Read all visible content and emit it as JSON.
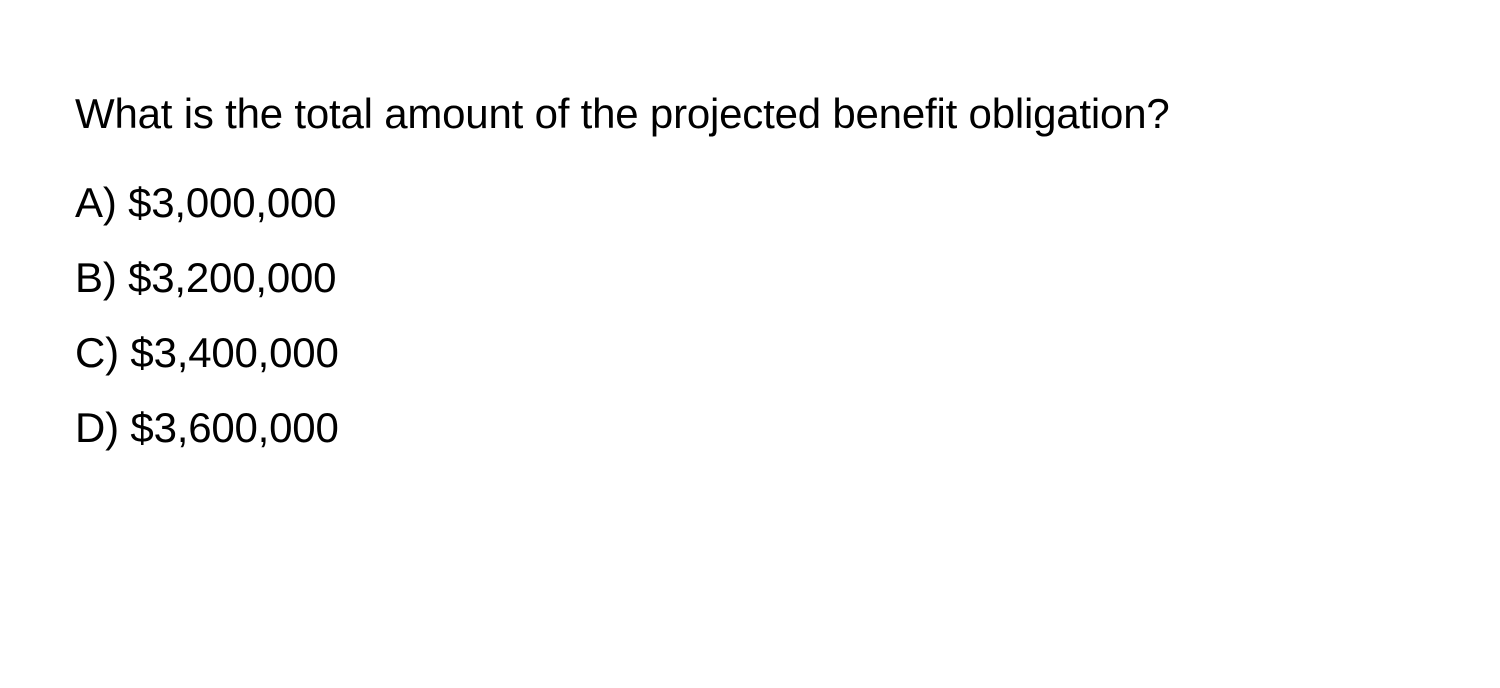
{
  "question": {
    "text": "What is the total amount of the projected benefit obligation?",
    "options": [
      {
        "label": "A)",
        "value": "$3,000,000"
      },
      {
        "label": "B)",
        "value": "$3,200,000"
      },
      {
        "label": "C)",
        "value": "$3,400,000"
      },
      {
        "label": "D)",
        "value": "$3,600,000"
      }
    ]
  },
  "styling": {
    "background_color": "#ffffff",
    "text_color": "#000000",
    "font_size_pt": 32,
    "line_height": 1.6
  }
}
